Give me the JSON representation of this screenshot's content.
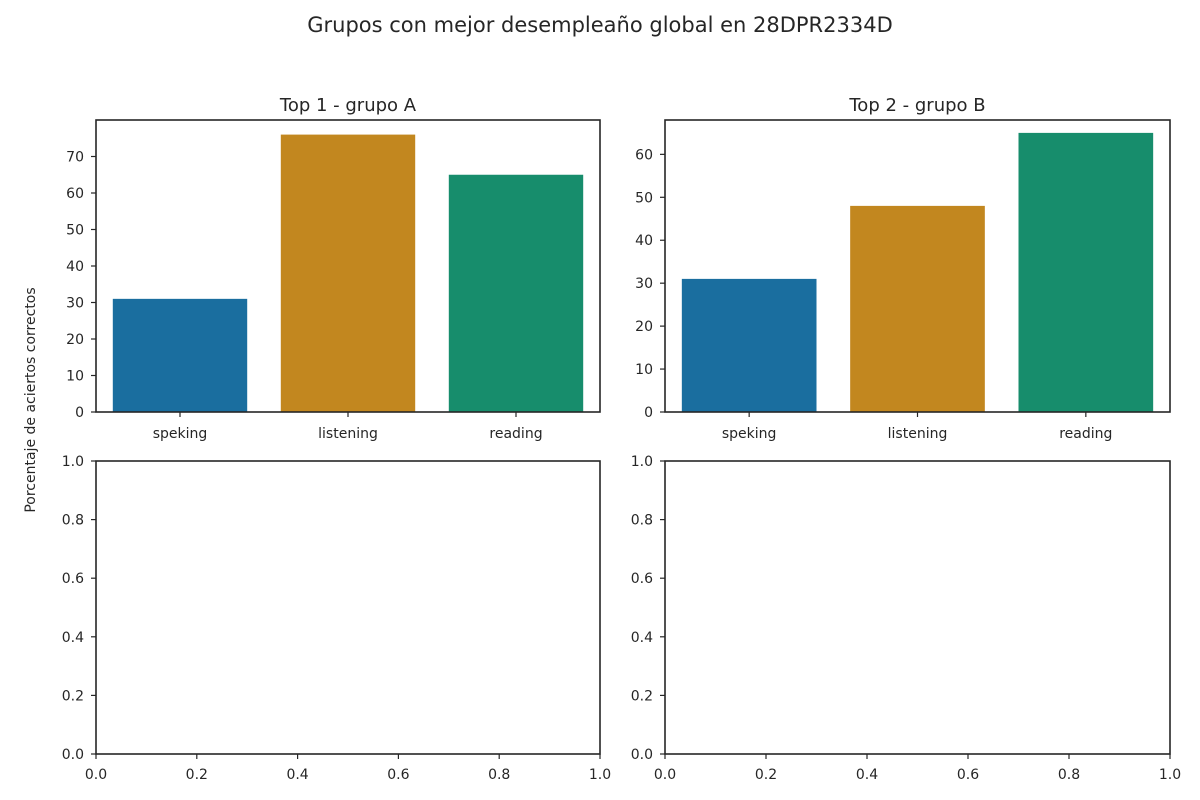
{
  "suptitle": "Grupos con mejor desempleaño global en 28DPR2334D",
  "ylabel": "Porcentaje de aciertos correctos",
  "chart_data": [
    {
      "type": "bar",
      "title": "Top  1 - grupo A",
      "categories": [
        "speking",
        "listening",
        "reading"
      ],
      "values": [
        31,
        76,
        65
      ],
      "colors": [
        "#1a6e9f",
        "#c2871f",
        "#178d6c"
      ],
      "ylim": [
        0,
        80
      ],
      "yticks": [
        0,
        10,
        20,
        30,
        40,
        50,
        60,
        70
      ]
    },
    {
      "type": "bar",
      "title": "Top  2 - grupo B",
      "categories": [
        "speking",
        "listening",
        "reading"
      ],
      "values": [
        31,
        48,
        65
      ],
      "colors": [
        "#1a6e9f",
        "#c2871f",
        "#178d6c"
      ],
      "ylim": [
        0,
        68
      ],
      "yticks": [
        0,
        10,
        20,
        30,
        40,
        50,
        60
      ]
    },
    {
      "type": "empty",
      "title": "",
      "xlim": [
        0,
        1
      ],
      "ylim": [
        0,
        1
      ],
      "xticks": [
        "0.0",
        "0.2",
        "0.4",
        "0.6",
        "0.8",
        "1.0"
      ],
      "yticks": [
        "0.0",
        "0.2",
        "0.4",
        "0.6",
        "0.8",
        "1.0"
      ]
    },
    {
      "type": "empty",
      "title": "",
      "xlim": [
        0,
        1
      ],
      "ylim": [
        0,
        1
      ],
      "xticks": [
        "0.0",
        "0.2",
        "0.4",
        "0.6",
        "0.8",
        "1.0"
      ],
      "yticks": [
        "0.0",
        "0.2",
        "0.4",
        "0.6",
        "0.8",
        "1.0"
      ]
    }
  ]
}
